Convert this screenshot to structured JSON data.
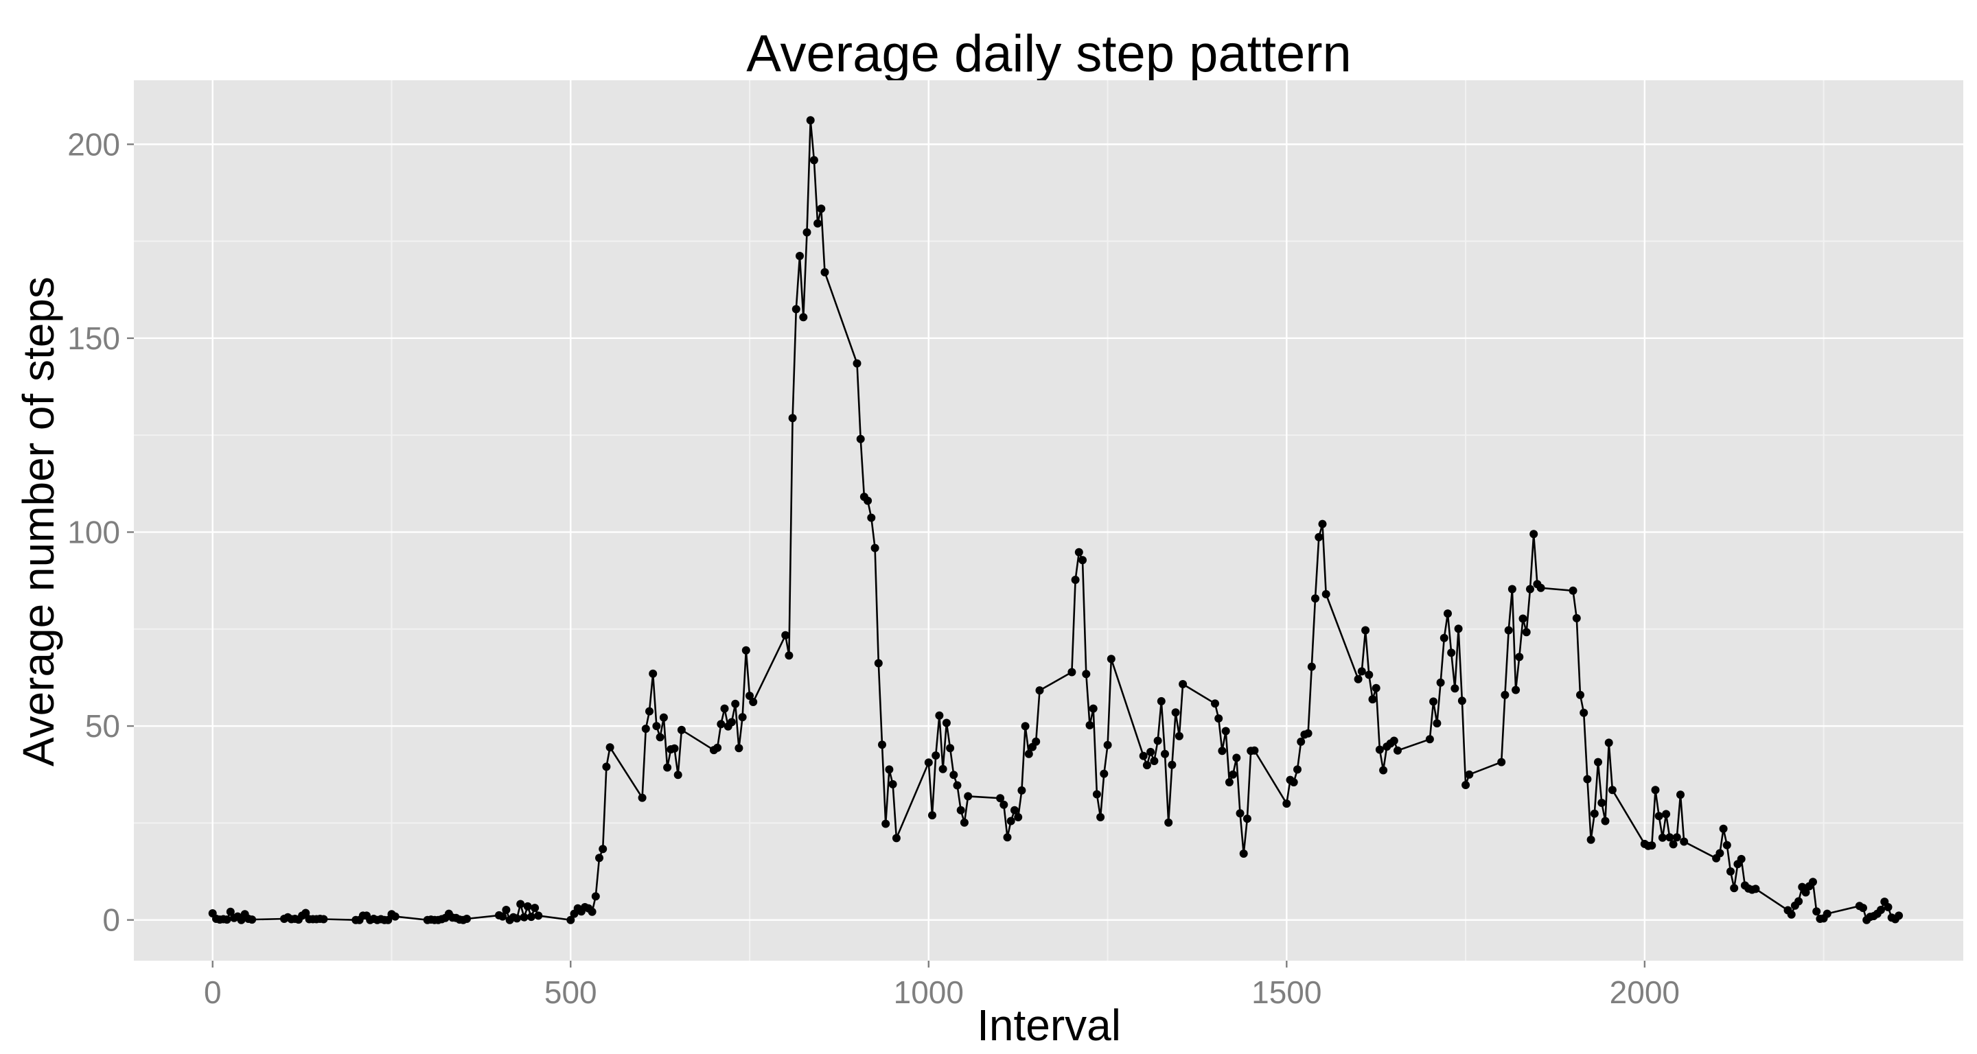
{
  "chart_data": {
    "type": "line",
    "title": "Average daily step pattern",
    "xlabel": "Interval",
    "ylabel": "Average number of steps",
    "xlim": [
      -110,
      2445
    ],
    "ylim": [
      -10.5,
      216.5
    ],
    "x_ticks": [
      0,
      500,
      1000,
      1500,
      2000
    ],
    "x_tick_labels": [
      "0",
      "500",
      "1000",
      "1500",
      "2000"
    ],
    "y_ticks": [
      0,
      50,
      100,
      150,
      200
    ],
    "y_tick_labels": [
      "0",
      "50",
      "100",
      "150",
      "200"
    ],
    "grid": true,
    "markers": true,
    "colors": {
      "panel": "#e5e5e5",
      "grid_major": "#ffffff",
      "grid_minor": "#f2f2f2",
      "series": "#000000",
      "tick_label": "#7f7f7f"
    },
    "series": [
      {
        "x": [
          0,
          5,
          10,
          15,
          20,
          25,
          30,
          35,
          40,
          45,
          50,
          55,
          100,
          105,
          110,
          115,
          120,
          125,
          130,
          135,
          140,
          145,
          150,
          155,
          200,
          205,
          210,
          215,
          220,
          225,
          230,
          235,
          240,
          245,
          250,
          255,
          300,
          305,
          310,
          315,
          320,
          325,
          330,
          335,
          340,
          345,
          350,
          355,
          400,
          405,
          410,
          415,
          420,
          425,
          430,
          435,
          440,
          445,
          450,
          455,
          500,
          505,
          510,
          515,
          520,
          525,
          530,
          535,
          540,
          545,
          550,
          555,
          600,
          605,
          610,
          615,
          620,
          625,
          630,
          635,
          640,
          645,
          650,
          655,
          700,
          705,
          710,
          715,
          720,
          725,
          730,
          735,
          740,
          745,
          750,
          755,
          800,
          805,
          810,
          815,
          820,
          825,
          830,
          835,
          840,
          845,
          850,
          855,
          900,
          905,
          910,
          915,
          920,
          925,
          930,
          935,
          940,
          945,
          950,
          955,
          1000,
          1005,
          1010,
          1015,
          1020,
          1025,
          1030,
          1035,
          1040,
          1045,
          1050,
          1055,
          1100,
          1105,
          1110,
          1115,
          1120,
          1125,
          1130,
          1135,
          1140,
          1145,
          1150,
          1155,
          1200,
          1205,
          1210,
          1215,
          1220,
          1225,
          1230,
          1235,
          1240,
          1245,
          1250,
          1255,
          1300,
          1305,
          1310,
          1315,
          1320,
          1325,
          1330,
          1335,
          1340,
          1345,
          1350,
          1355,
          1400,
          1405,
          1410,
          1415,
          1420,
          1425,
          1430,
          1435,
          1440,
          1445,
          1450,
          1455,
          1500,
          1505,
          1510,
          1515,
          1520,
          1525,
          1530,
          1535,
          1540,
          1545,
          1550,
          1555,
          1600,
          1605,
          1610,
          1615,
          1620,
          1625,
          1630,
          1635,
          1640,
          1645,
          1650,
          1655,
          1700,
          1705,
          1710,
          1715,
          1720,
          1725,
          1730,
          1735,
          1740,
          1745,
          1750,
          1755,
          1800,
          1805,
          1810,
          1815,
          1820,
          1825,
          1830,
          1835,
          1840,
          1845,
          1850,
          1855,
          1900,
          1905,
          1910,
          1915,
          1920,
          1925,
          1930,
          1935,
          1940,
          1945,
          1950,
          1955,
          2000,
          2005,
          2010,
          2015,
          2020,
          2025,
          2030,
          2035,
          2040,
          2045,
          2050,
          2055,
          2100,
          2105,
          2110,
          2115,
          2120,
          2125,
          2130,
          2135,
          2140,
          2145,
          2150,
          2155,
          2200,
          2205,
          2210,
          2215,
          2220,
          2225,
          2230,
          2235,
          2240,
          2245,
          2250,
          2255,
          2300,
          2305,
          2310,
          2315,
          2320,
          2325,
          2330,
          2335,
          2340,
          2345,
          2350,
          2355
        ],
        "y": [
          1.7,
          0.3,
          0.1,
          0.2,
          0.1,
          2.1,
          0.5,
          0.9,
          0,
          1.5,
          0.3,
          0.1,
          0.3,
          0.7,
          0.2,
          0.3,
          0.1,
          1.1,
          1.8,
          0.2,
          0.2,
          0.2,
          0.3,
          0.2,
          0,
          0,
          1.1,
          1.1,
          0,
          0.3,
          0,
          0.2,
          0,
          0,
          1.5,
          0.9,
          0,
          0.1,
          0,
          0,
          0.2,
          0.5,
          1.6,
          0.6,
          0.5,
          0.1,
          0,
          0.3,
          1.2,
          0.9,
          2.6,
          0,
          0.7,
          0.4,
          4.1,
          0.7,
          3.5,
          0.8,
          3.1,
          1.1,
          0,
          1.6,
          3,
          2.2,
          3.3,
          3,
          2.1,
          6.1,
          16,
          18.3,
          39.5,
          44.5,
          31.5,
          49.3,
          53.8,
          63.5,
          50,
          47.1,
          52.2,
          39.3,
          44,
          44.2,
          37.4,
          49,
          43.8,
          44.4,
          50.5,
          54.5,
          49.9,
          51,
          55.7,
          44.3,
          52.3,
          69.5,
          57.8,
          56.2,
          73.4,
          68.2,
          129.4,
          157.5,
          171.2,
          155.4,
          177.3,
          206.2,
          195.9,
          179.6,
          183.4,
          167,
          143.5,
          124,
          109.1,
          108.1,
          103.7,
          95.9,
          66.2,
          45.2,
          24.8,
          38.8,
          34.98,
          21.1,
          40.6,
          27,
          42.4,
          52.7,
          38.9,
          50.8,
          44.3,
          37.4,
          34.7,
          28.3,
          25.1,
          31.9,
          31.4,
          29.7,
          21.3,
          25.5,
          28.3,
          26.5,
          33.4,
          49.98,
          42.8,
          44.6,
          46,
          59.2,
          63.9,
          87.7,
          94.8,
          92.8,
          63.4,
          50.2,
          54.5,
          32.4,
          26.5,
          37.7,
          45.1,
          67.3,
          42.3,
          39.9,
          43.3,
          40.98,
          46.2,
          56.4,
          42.8,
          25.1,
          40,
          53.5,
          47.4,
          60.8,
          55.8,
          51.96,
          43.6,
          48.7,
          35.5,
          37.5,
          41.8,
          27.5,
          17.1,
          26.1,
          43.6,
          43.7,
          30,
          36.1,
          35.5,
          38.8,
          45.96,
          47.8,
          48.1,
          65.3,
          82.9,
          98.7,
          102.1,
          84,
          62.1,
          64.1,
          74.7,
          63.2,
          56.9,
          59.8,
          43.9,
          38.6,
          44.7,
          45.5,
          46.2,
          43.7,
          46.6,
          56.3,
          50.7,
          61.2,
          72.7,
          79,
          68.9,
          59.7,
          75.1,
          56.5,
          34.8,
          37.5,
          40.7,
          58,
          74.7,
          85.3,
          59.3,
          67.8,
          77.7,
          74.2,
          85.3,
          99.5,
          86.6,
          85.6,
          84.9,
          77.8,
          58,
          53.4,
          36.3,
          20.7,
          27.4,
          40.7,
          30.2,
          25.5,
          45.7,
          33.5,
          19.6,
          19.1,
          19.2,
          33.5,
          26.8,
          21.2,
          27.3,
          21.3,
          19.5,
          21.3,
          32.3,
          20.2,
          15.9,
          17.2,
          23.5,
          19.3,
          12.5,
          8.2,
          14.4,
          15.7,
          8.9,
          8.1,
          7.8,
          8,
          2.5,
          1.4,
          3.7,
          4.8,
          8.5,
          7.1,
          8.7,
          9.8,
          2.2,
          0.3,
          0.4,
          1.6,
          3.6,
          3.1,
          0,
          0.8,
          1,
          1.6,
          2.6,
          4.7,
          3.3,
          0.6,
          0.2,
          1.1
        ]
      }
    ]
  }
}
